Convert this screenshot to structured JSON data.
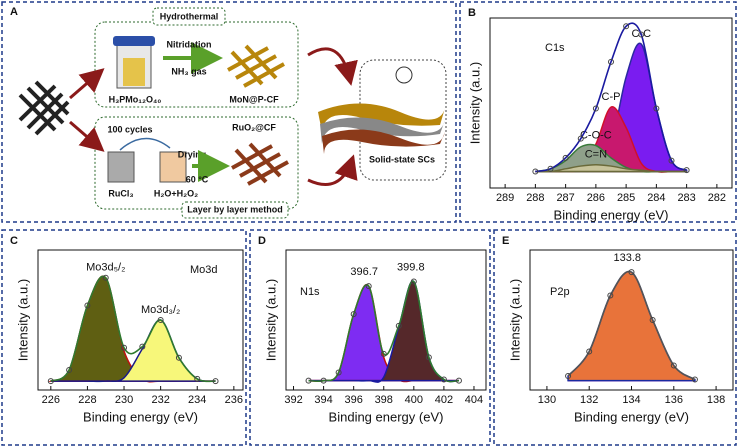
{
  "diagram": {
    "label": "A",
    "hydrothermal": "Hydrothermal",
    "nitridation": "Nitridation",
    "gas": "NH₃ gas",
    "precursor": "H₃PMo₁₂O₄₀",
    "product_top": "MoN@P-CF",
    "cycles": "100 cycles",
    "product_bottom": "RuO₂@CF",
    "drying": "Drying",
    "temperature": "60 °C",
    "beaker_left": "RuCl₃",
    "beaker_right": "H₂O+H₂O₂",
    "method": "Layer by layer method",
    "device": "Solid-state SCs"
  },
  "chart_data": [
    {
      "type": "area",
      "panel": "B",
      "annotation": "C1s",
      "xlabel": "Binding energy (eV)",
      "ylabel": "Intensity (a.u.)",
      "x": [
        288,
        287.5,
        287,
        286.5,
        286,
        285.5,
        285,
        284.5,
        284,
        283.5,
        283
      ],
      "xlim": [
        289.5,
        281.5
      ],
      "xticks": [
        289,
        288,
        287,
        286,
        285,
        284,
        283,
        282
      ],
      "ylim": [
        -12,
        112
      ],
      "series": [
        {
          "name": "C-C",
          "color": "#2a2aa0",
          "fill": "#7a1cf0",
          "values": [
            0,
            0,
            0,
            0,
            2,
            19,
            69,
            93,
            46,
            8,
            1
          ]
        },
        {
          "name": "C-P",
          "color": "#d0102a",
          "fill": "#c8186e",
          "values": [
            0,
            0,
            0,
            2,
            20,
            47,
            32,
            6,
            0,
            0,
            0
          ]
        },
        {
          "name": "C-O-C",
          "color": "#3a7a3a",
          "fill": "#8fa08a",
          "values": [
            0,
            2,
            8,
            18,
            19,
            10,
            3,
            0,
            0,
            0,
            0
          ]
        },
        {
          "name": "C=N",
          "color": "#6a6a3a",
          "fill": "#c7c39a",
          "values": [
            0,
            0,
            2,
            4,
            5,
            4,
            2,
            1,
            0,
            0,
            0
          ]
        },
        {
          "color": "#1a1aa0",
          "markers": true,
          "values": [
            0,
            2,
            10,
            24,
            46,
            80,
            106,
            100,
            46,
            8,
            1
          ]
        }
      ]
    },
    {
      "type": "area",
      "panel": "C",
      "annotation": "Mo3d",
      "xlabel": "Binding energy (eV)",
      "ylabel": "Intensity (a.u.)",
      "x": [
        226,
        227,
        228,
        229,
        230,
        231,
        232,
        233,
        234,
        235
      ],
      "xlim": [
        225.3,
        236.5
      ],
      "xticks": [
        226,
        228,
        230,
        232,
        234,
        236
      ],
      "ylim": [
        -8,
        118
      ],
      "series": [
        {
          "name": "Mo3d₅/₂",
          "color": "#c01010",
          "fill": "#5f5f12",
          "values": [
            0,
            10,
            68,
            93,
            27,
            2,
            0,
            0,
            0,
            0
          ]
        },
        {
          "name": "Mo3d₃/₂",
          "color": "#1a1a8a",
          "fill": "#f7f77a",
          "values": [
            0,
            0,
            0,
            0,
            3,
            29,
            55,
            21,
            2,
            0
          ]
        },
        {
          "color": "#2f7a2f",
          "markers": true,
          "values": [
            0,
            10,
            68,
            93,
            30,
            31,
            55,
            21,
            2,
            0
          ]
        }
      ]
    },
    {
      "type": "area",
      "panel": "D",
      "annotation": "N1s",
      "xlabel": "Binding energy (eV)",
      "ylabel": "Intensity (a.u.)",
      "x": [
        393,
        394,
        395,
        396,
        397,
        398,
        399,
        400,
        401,
        402,
        403
      ],
      "xlim": [
        391.5,
        404.8
      ],
      "xticks": [
        392,
        394,
        396,
        398,
        400,
        402,
        404
      ],
      "ylim": [
        -8,
        112
      ],
      "series": [
        {
          "peak": 396.7,
          "color": "#c01010",
          "fill": "#7e2cf2",
          "values": [
            0,
            0,
            7,
            57,
            81,
            20,
            1,
            0,
            0,
            0,
            0
          ]
        },
        {
          "peak": 399.8,
          "color": "#1a1aa0",
          "fill": "#55282a",
          "values": [
            0,
            0,
            0,
            0,
            0,
            3,
            46,
            85,
            20,
            1,
            0
          ]
        },
        {
          "color": "#2f7a2f",
          "markers": true,
          "values": [
            0,
            0,
            7,
            57,
            81,
            23,
            47,
            85,
            20,
            1,
            0
          ]
        }
      ]
    },
    {
      "type": "area",
      "panel": "E",
      "annotation": "P2p",
      "xlabel": "Binding energy (eV)",
      "ylabel": "Intensity (a.u.)",
      "x": [
        131,
        132,
        133,
        134,
        135,
        136,
        137
      ],
      "xlim": [
        129.2,
        138.8
      ],
      "xticks": [
        130,
        132,
        134,
        136,
        138
      ],
      "ylim": [
        -8,
        112
      ],
      "series": [
        {
          "peak": 133.8,
          "color": "#1a2aa0",
          "fill": "#e8733a",
          "values": [
            4,
            25,
            73,
            93,
            52,
            13,
            1
          ]
        },
        {
          "color": "#555555",
          "markers": true,
          "values": [
            4,
            25,
            73,
            93,
            52,
            13,
            1
          ]
        }
      ]
    }
  ]
}
